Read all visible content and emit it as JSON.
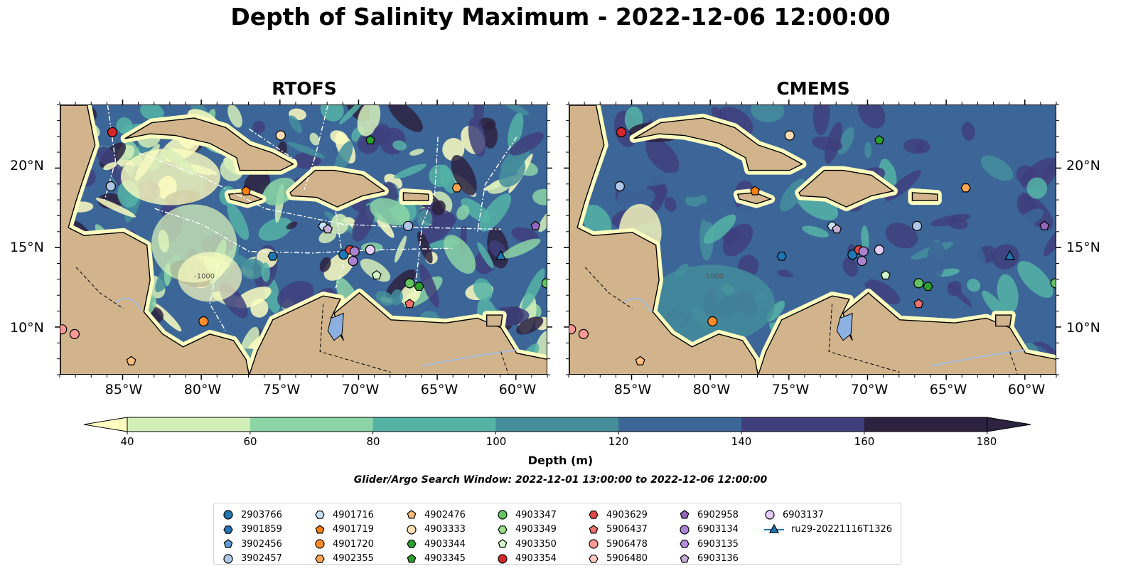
{
  "title": "Depth of Salinity Maximum - 2022-12-06 12:00:00",
  "panels": [
    {
      "title": "RTOFS"
    },
    {
      "title": "CMEMS"
    }
  ],
  "x_ticks": [
    "85°W",
    "80°W",
    "75°W",
    "70°W",
    "65°W",
    "60°W"
  ],
  "y_ticks": [
    "20°N",
    "15°N",
    "10°N"
  ],
  "colorbar": {
    "label": "Depth (m)",
    "tick_labels": [
      "40",
      "60",
      "80",
      "100",
      "120",
      "140",
      "160",
      "180"
    ],
    "colors": [
      "#fcfdbf",
      "#d3efb8",
      "#8bd4a6",
      "#55b3a6",
      "#448e9c",
      "#3c6698",
      "#3e3f7c",
      "#2d2240"
    ],
    "extend": "both"
  },
  "search_window": "Glider/Argo Search Window: 2022-12-01 13:00:00 to 2022-12-06 12:00:00",
  "contour_label": "-1000",
  "legend": [
    {
      "label": "2903766",
      "marker": "circle",
      "color": "#1f77b4"
    },
    {
      "label": "3901859",
      "marker": "hexagon",
      "color": "#1f77b4"
    },
    {
      "label": "3902456",
      "marker": "pentagon",
      "color": "#5b9bd5"
    },
    {
      "label": "3902457",
      "marker": "circle",
      "color": "#aec7e8"
    },
    {
      "label": "4901716",
      "marker": "hexagon",
      "color": "#c6e2f5"
    },
    {
      "label": "4901719",
      "marker": "pentagon",
      "color": "#ff7f0e"
    },
    {
      "label": "4901720",
      "marker": "circle",
      "color": "#ff8c28"
    },
    {
      "label": "4902355",
      "marker": "hexagon",
      "color": "#ffa552"
    },
    {
      "label": "4902476",
      "marker": "pentagon",
      "color": "#ffbb78"
    },
    {
      "label": "4903333",
      "marker": "circle",
      "color": "#ffdcb4"
    },
    {
      "label": "4903344",
      "marker": "hexagon",
      "color": "#2ca02c"
    },
    {
      "label": "4903345",
      "marker": "pentagon",
      "color": "#2ca02c"
    },
    {
      "label": "4903347",
      "marker": "circle",
      "color": "#62c462"
    },
    {
      "label": "4903349",
      "marker": "hexagon",
      "color": "#98df8a"
    },
    {
      "label": "4903350",
      "marker": "pentagon",
      "color": "#d4f5c8"
    },
    {
      "label": "4903354",
      "marker": "circle",
      "color": "#d62728"
    },
    {
      "label": "4903629",
      "marker": "hexagon",
      "color": "#e04848"
    },
    {
      "label": "5906437",
      "marker": "pentagon",
      "color": "#f07070"
    },
    {
      "label": "5906478",
      "marker": "circle",
      "color": "#ff9896"
    },
    {
      "label": "5906480",
      "marker": "hexagon",
      "color": "#ffc8c6"
    },
    {
      "label": "6902958",
      "marker": "pentagon",
      "color": "#9467bd"
    },
    {
      "label": "6903134",
      "marker": "circle",
      "color": "#a982d0"
    },
    {
      "label": "6903135",
      "marker": "hexagon",
      "color": "#b48fe0"
    },
    {
      "label": "6903136",
      "marker": "pentagon",
      "color": "#c5b0d5"
    },
    {
      "label": "6903137",
      "marker": "circle",
      "color": "#e3ccf5"
    },
    {
      "label": "ru29-20221116T1326",
      "marker": "triangle-line",
      "color": "#1f77b4"
    }
  ],
  "map_data": {
    "extent": {
      "lon": [
        -89,
        -58
      ],
      "lat": [
        7,
        24
      ]
    },
    "land_color": "#d2b48c",
    "lake_color": "#a6bddb",
    "floats": [
      {
        "id": "4903354",
        "lon": -85.7,
        "lat": 22.3
      },
      {
        "id": "4903333",
        "lon": -75.0,
        "lat": 22.1
      },
      {
        "id": "4903345",
        "lon": -69.3,
        "lat": 21.8
      },
      {
        "id": "3902457",
        "lon": -85.8,
        "lat": 18.9
      },
      {
        "id": "4901719",
        "lon": -77.2,
        "lat": 18.6
      },
      {
        "id": "4902355",
        "lon": -63.8,
        "lat": 18.8
      },
      {
        "id": "4901716",
        "lon": -72.3,
        "lat": 16.4
      },
      {
        "id": "6903136",
        "lon": -72.0,
        "lat": 16.2
      },
      {
        "id": "3902457",
        "lon": -66.9,
        "lat": 16.4
      },
      {
        "id": "6902958",
        "lon": -58.8,
        "lat": 16.4
      },
      {
        "id": "3901859",
        "lon": -75.5,
        "lat": 14.5
      },
      {
        "id": "2903766",
        "lon": -71.0,
        "lat": 14.6
      },
      {
        "id": "4903629",
        "lon": -70.6,
        "lat": 14.9
      },
      {
        "id": "6903134",
        "lon": -70.3,
        "lat": 14.8
      },
      {
        "id": "6903137",
        "lon": -69.3,
        "lat": 14.9
      },
      {
        "id": "6903134",
        "lon": -70.4,
        "lat": 14.2
      },
      {
        "id": "4903350",
        "lon": -68.9,
        "lat": 13.3
      },
      {
        "id": "ru29-20221116T1326",
        "lon": -61.0,
        "lat": 14.5
      },
      {
        "id": "4903347",
        "lon": -66.8,
        "lat": 12.8
      },
      {
        "id": "4903344",
        "lon": -66.2,
        "lat": 12.6
      },
      {
        "id": "5906437",
        "lon": -66.8,
        "lat": 11.5
      },
      {
        "id": "4903347",
        "lon": -58.1,
        "lat": 12.8
      },
      {
        "id": "4901720",
        "lon": -79.9,
        "lat": 10.4
      },
      {
        "id": "5906478",
        "lon": -88.9,
        "lat": 9.9
      },
      {
        "id": "5906478",
        "lon": -88.1,
        "lat": 9.6
      },
      {
        "id": "4902476",
        "lon": -84.5,
        "lat": 7.9
      }
    ]
  }
}
